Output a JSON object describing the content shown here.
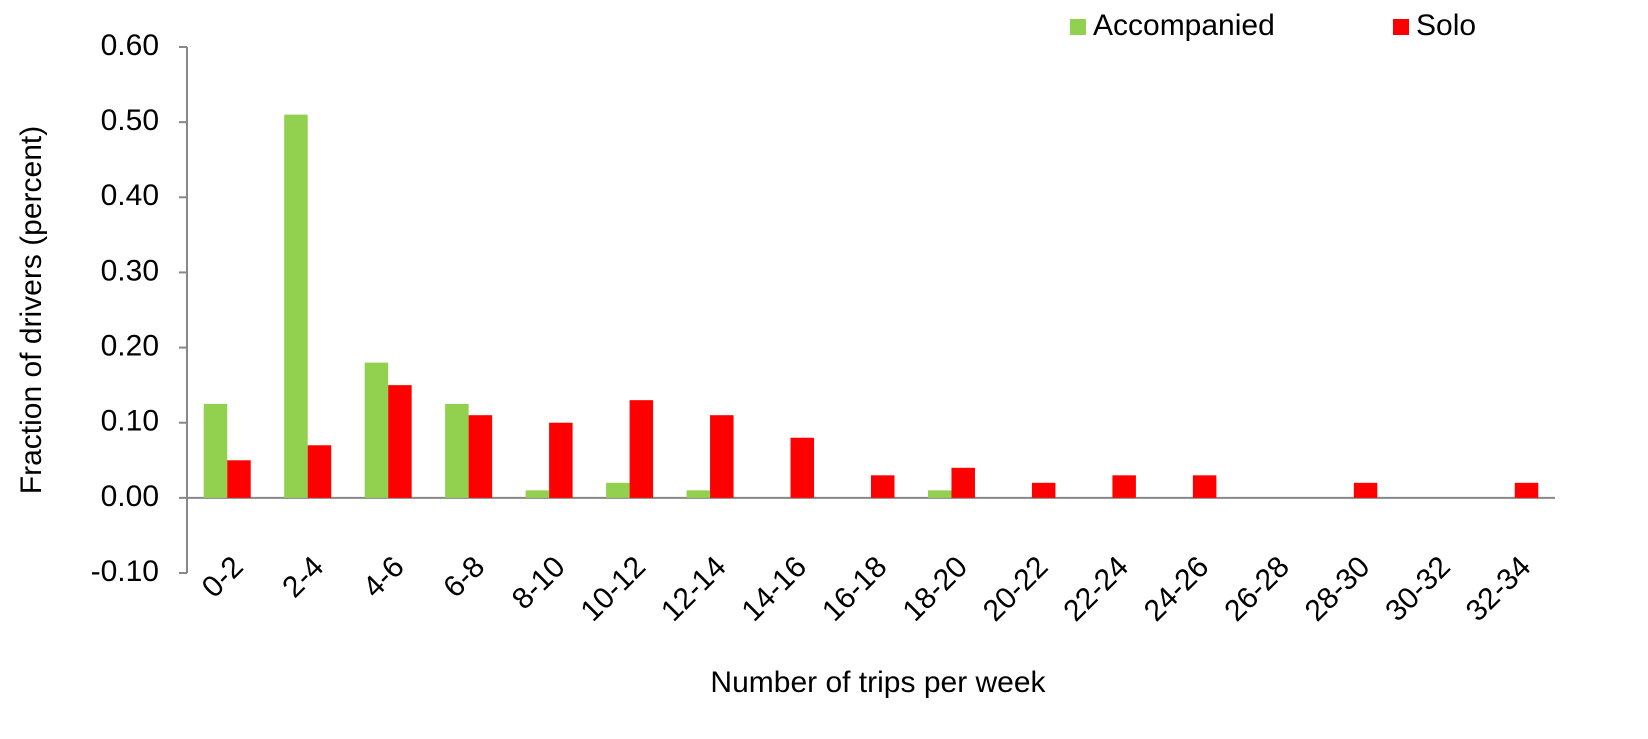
{
  "chart_data": {
    "type": "bar",
    "xlabel": "Number of trips per week",
    "ylabel": "Fraction of drivers (percent)",
    "categories": [
      "0-2",
      "2-4",
      "4-6",
      "6-8",
      "8-10",
      "10-12",
      "12-14",
      "14-16",
      "16-18",
      "18-20",
      "20-22",
      "22-24",
      "24-26",
      "26-28",
      "28-30",
      "30-32",
      "32-34"
    ],
    "series": [
      {
        "name": "Accompanied",
        "color": "#92d050",
        "values": [
          0.125,
          0.51,
          0.18,
          0.125,
          0.01,
          0.02,
          0.01,
          0,
          0,
          0.01,
          0,
          0,
          0,
          0,
          0,
          0,
          0
        ]
      },
      {
        "name": "Solo",
        "color": "#ff0000",
        "values": [
          0.05,
          0.07,
          0.15,
          0.11,
          0.1,
          0.13,
          0.11,
          0.08,
          0.03,
          0.04,
          0.02,
          0.03,
          0.03,
          0,
          0.02,
          0,
          0.02
        ]
      }
    ],
    "ylim": [
      -0.1,
      0.6
    ],
    "yticks": [
      {
        "value": -0.1,
        "label": "-0.10"
      },
      {
        "value": 0,
        "label": "0.00"
      },
      {
        "value": 0.1,
        "label": "0.10"
      },
      {
        "value": 0.2,
        "label": "0.20"
      },
      {
        "value": 0.3,
        "label": "0.30"
      },
      {
        "value": 0.4,
        "label": "0.40"
      },
      {
        "value": 0.5,
        "label": "0.50"
      },
      {
        "value": 0.6,
        "label": "0.60"
      }
    ],
    "grid": false,
    "legend": "top-right"
  }
}
